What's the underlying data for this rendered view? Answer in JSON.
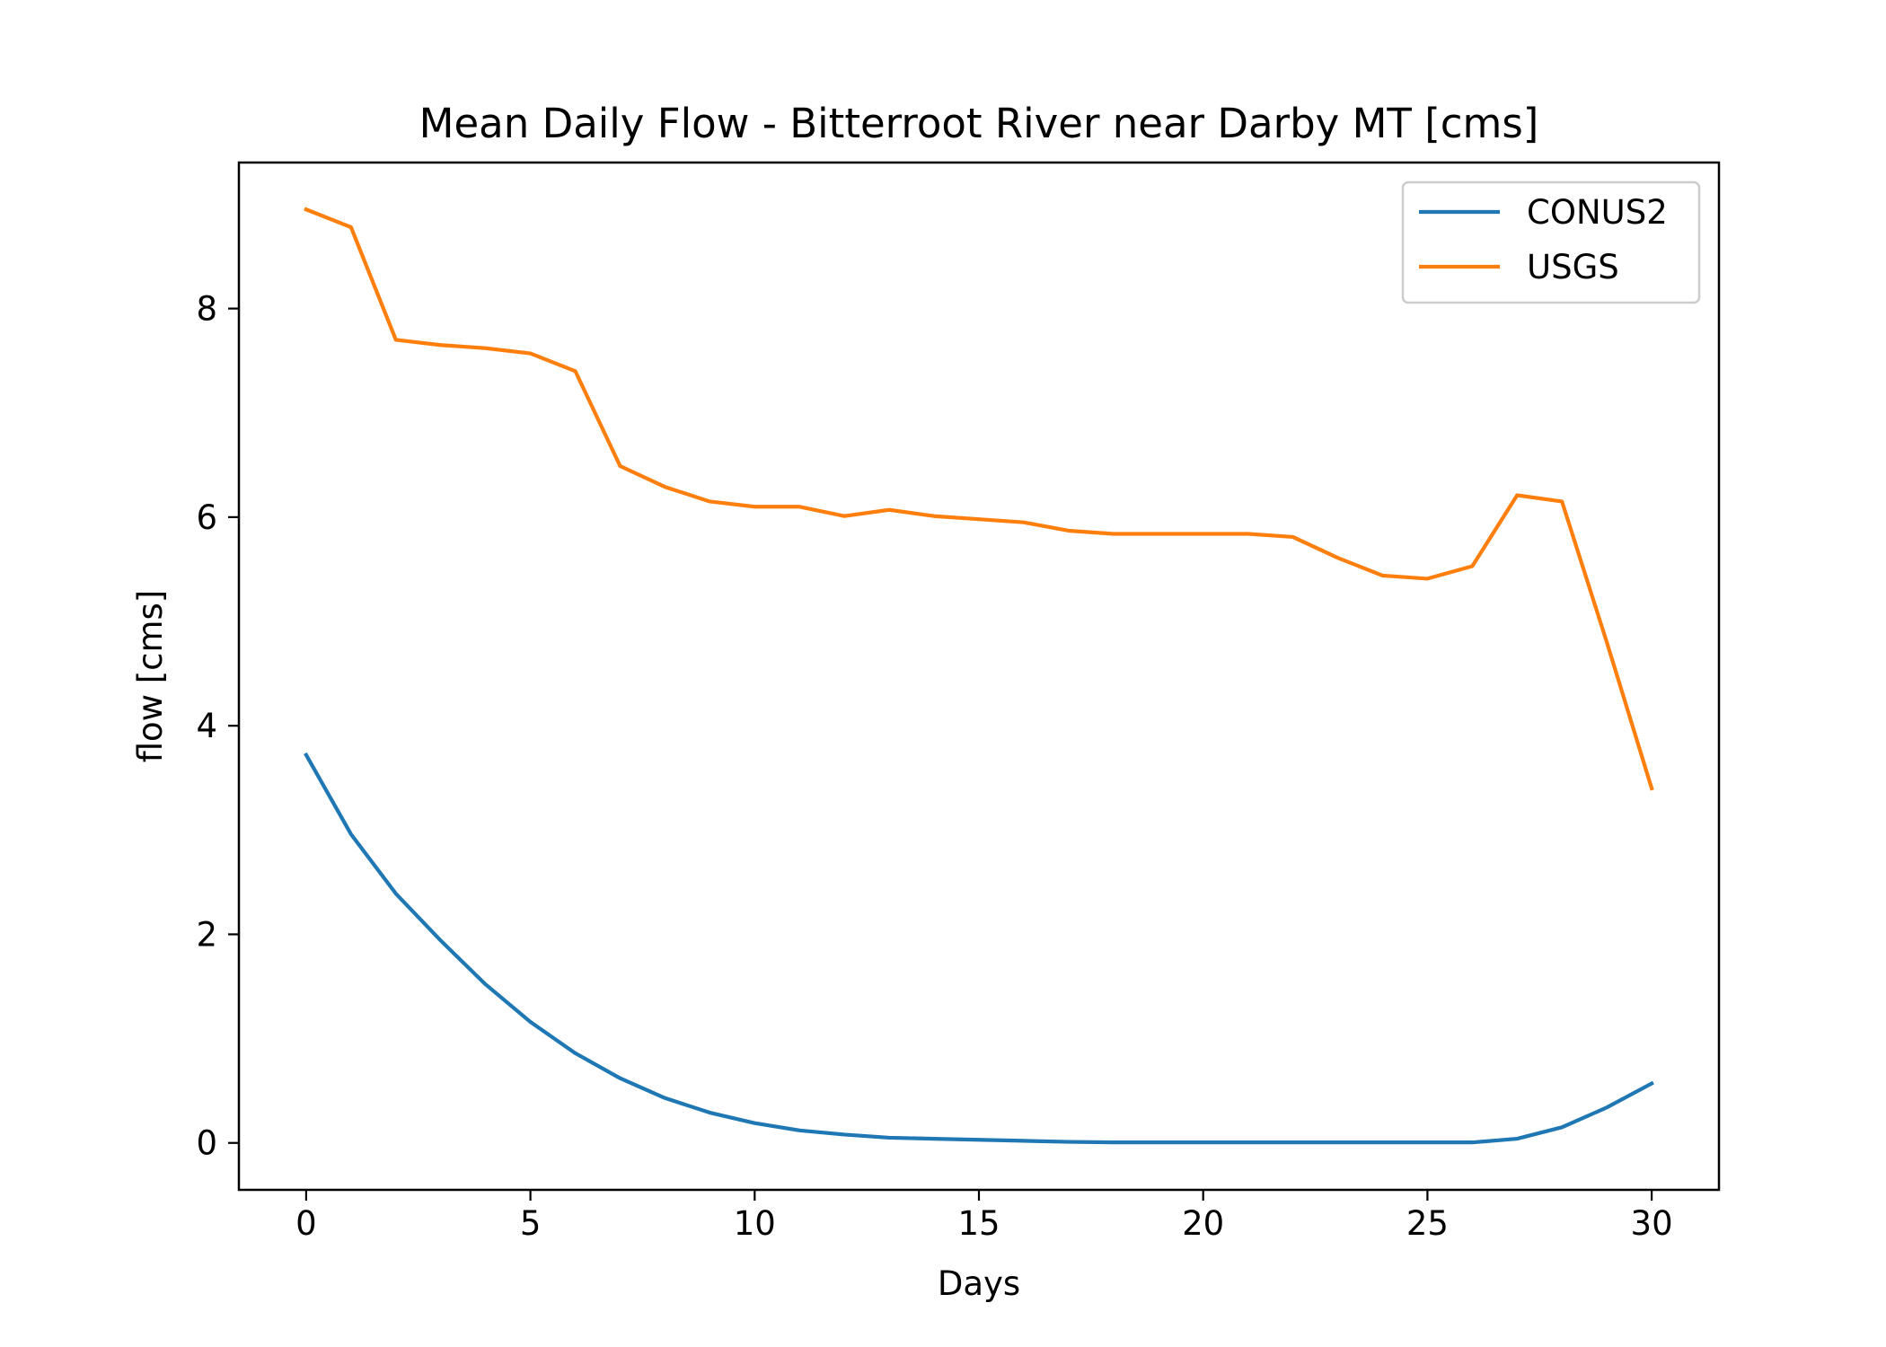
{
  "chart_data": {
    "type": "line",
    "title": "Mean Daily Flow - Bitterroot River near Darby MT [cms]",
    "xlabel": "Days",
    "ylabel": "flow [cms]",
    "xlim": [
      -1.5,
      31.5
    ],
    "ylim": [
      -0.45,
      9.4
    ],
    "xticks": [
      0,
      5,
      10,
      15,
      20,
      25,
      30
    ],
    "yticks": [
      0,
      2,
      4,
      6,
      8
    ],
    "grid": false,
    "legend": "top-right",
    "x": [
      0,
      1,
      2,
      3,
      4,
      5,
      6,
      7,
      8,
      9,
      10,
      11,
      12,
      13,
      14,
      15,
      16,
      17,
      18,
      19,
      20,
      21,
      22,
      23,
      24,
      25,
      26,
      27,
      28,
      29,
      30
    ],
    "series": [
      {
        "name": "CONUS2",
        "color": "#1f77b4",
        "values": [
          3.72,
          2.96,
          2.39,
          1.94,
          1.52,
          1.16,
          0.86,
          0.62,
          0.43,
          0.29,
          0.19,
          0.12,
          0.08,
          0.05,
          0.04,
          0.03,
          0.02,
          0.01,
          0.005,
          0.005,
          0.005,
          0.005,
          0.005,
          0.005,
          0.005,
          0.005,
          0.005,
          0.04,
          0.15,
          0.34,
          0.57
        ]
      },
      {
        "name": "USGS",
        "color": "#ff7f0e",
        "values": [
          8.95,
          8.78,
          7.7,
          7.65,
          7.62,
          7.57,
          7.4,
          6.49,
          6.29,
          6.15,
          6.1,
          6.1,
          6.01,
          6.07,
          6.01,
          5.98,
          5.95,
          5.87,
          5.84,
          5.84,
          5.84,
          5.84,
          5.81,
          5.61,
          5.44,
          5.41,
          5.53,
          6.21,
          6.15,
          4.8,
          3.4
        ]
      }
    ]
  }
}
